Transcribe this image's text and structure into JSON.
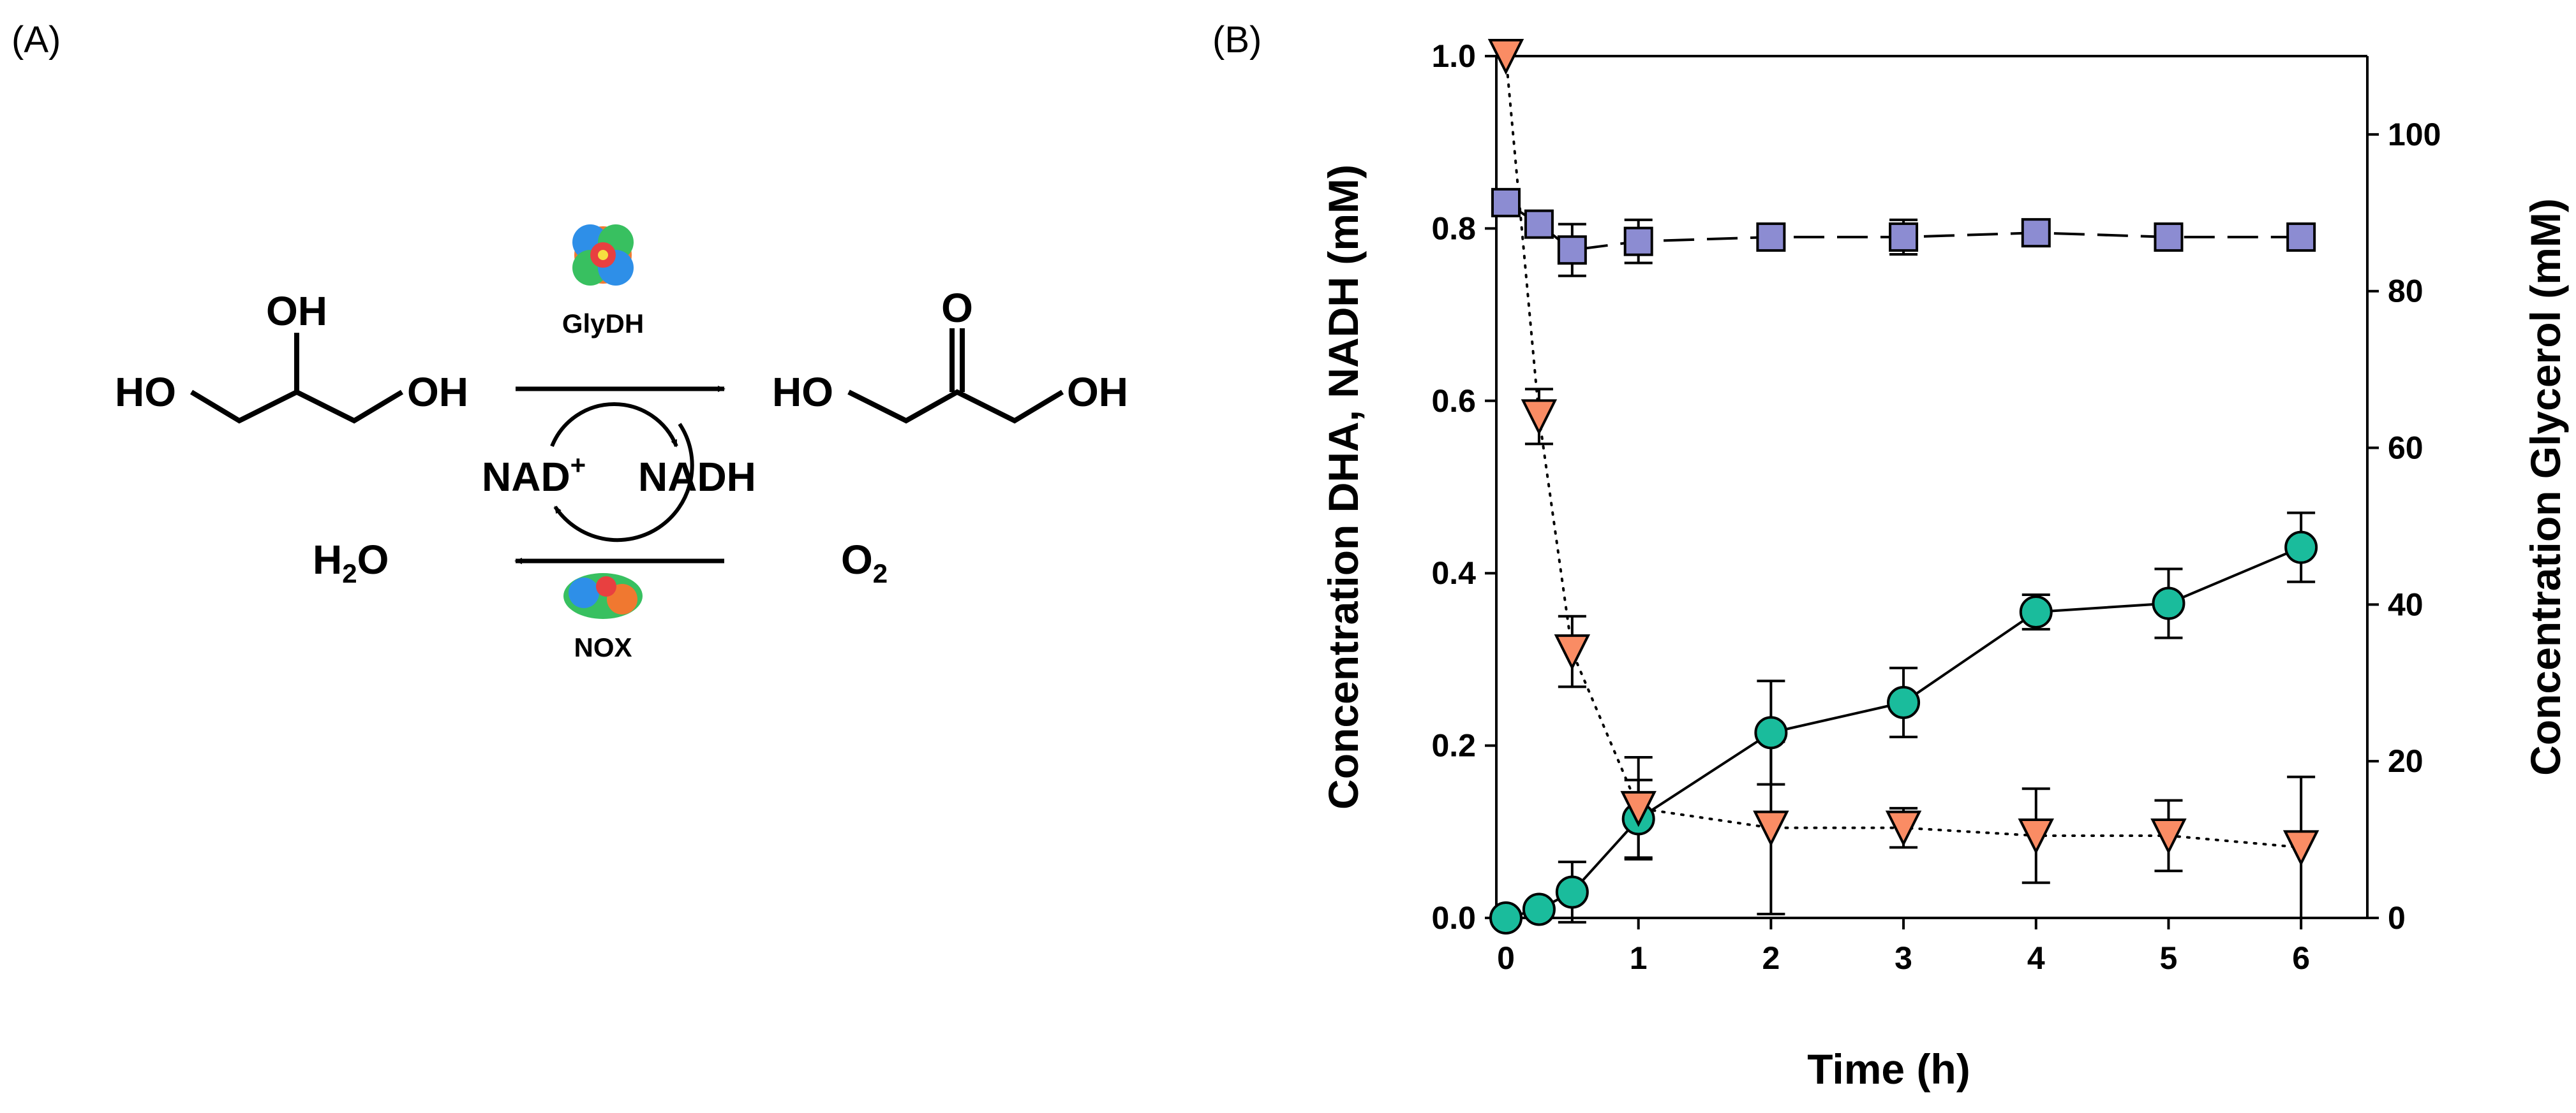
{
  "panel_a": {
    "letter": "(A)",
    "substrate_oh_top": "OH",
    "substrate_ho_left": "HO",
    "substrate_oh_right": "OH",
    "product_o": "O",
    "product_ho_left": "HO",
    "product_oh_right": "OH",
    "enzyme_top": "GlyDH",
    "enzyme_bottom": "NOX",
    "cofactor_ox": "NAD",
    "cofactor_ox_sup": "+",
    "cofactor_red": "NADH",
    "water_h": "H",
    "water_sub": "2",
    "water_o": "O",
    "oxygen_o": "O",
    "oxygen_sub": "2",
    "colors": {
      "protein_orange": "#f07830",
      "protein_blue": "#2e8fe8",
      "protein_green": "#38c060"
    }
  },
  "panel_b": {
    "letter": "(B)"
  },
  "chart_data": {
    "type": "scatter",
    "xlabel": "Time (h)",
    "ylabel": "Concentration DHA, NADH (mM)",
    "y2label": "Concentration Glycerol (mM)",
    "xlim": [
      0,
      6.5
    ],
    "ylim": [
      0,
      1.0
    ],
    "y2lim": [
      0,
      110
    ],
    "xticks": [
      "0",
      "1",
      "2",
      "3",
      "4",
      "5",
      "6"
    ],
    "yticks": [
      "0.0",
      "0.2",
      "0.4",
      "0.6",
      "0.8",
      "1.0"
    ],
    "y2ticks": [
      "0",
      "20",
      "40",
      "60",
      "80",
      "100"
    ],
    "grid": false,
    "series": [
      {
        "id": "dha",
        "axis": "left",
        "marker": "circle",
        "line": "solid",
        "color": "#1abc9c",
        "x": [
          0,
          0.25,
          0.5,
          1,
          2,
          3,
          4,
          5,
          6
        ],
        "y": [
          0.0,
          0.01,
          0.03,
          0.115,
          0.215,
          0.25,
          0.355,
          0.365,
          0.43
        ],
        "err": [
          0,
          0,
          0.035,
          0.045,
          0.06,
          0.04,
          0.02,
          0.04,
          0.04
        ]
      },
      {
        "id": "nadh",
        "axis": "left",
        "marker": "square",
        "line": "dashed",
        "color": "#8c8cd2",
        "x": [
          0,
          0.25,
          0.5,
          1,
          2,
          3,
          4,
          5,
          6
        ],
        "y": [
          0.83,
          0.805,
          0.775,
          0.785,
          0.79,
          0.79,
          0.795,
          0.79,
          0.79
        ],
        "err": [
          0.01,
          0.015,
          0.03,
          0.025,
          0.005,
          0.02,
          0.01,
          0.005,
          0.015
        ]
      },
      {
        "id": "glycerol",
        "axis": "right",
        "marker": "triangle-down",
        "line": "dotted",
        "color": "#fa8c64",
        "x": [
          0,
          0.25,
          0.5,
          1,
          2,
          3,
          4,
          5,
          6
        ],
        "y": [
          110,
          64,
          34,
          14,
          11.5,
          11.5,
          10.5,
          10.5,
          9
        ],
        "err": [
          0,
          3.5,
          4.5,
          6.5,
          11,
          2.5,
          6,
          4.5,
          9
        ]
      }
    ]
  }
}
